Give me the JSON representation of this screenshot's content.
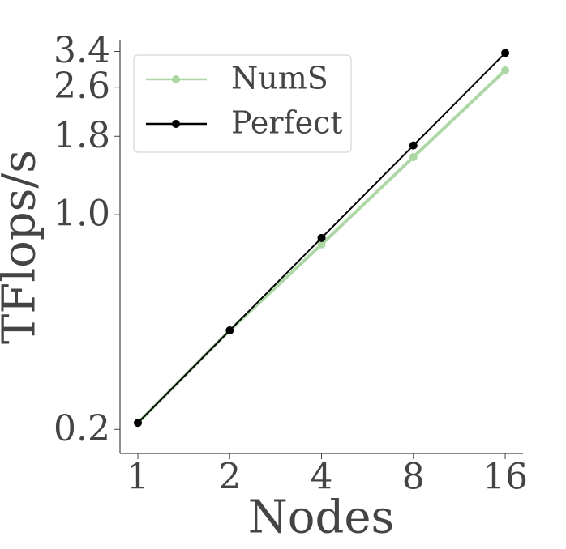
{
  "chart_data": {
    "type": "line",
    "x_label": "Nodes",
    "y_label": "TFlops/s",
    "x": [
      1,
      2,
      4,
      8,
      16
    ],
    "series": [
      {
        "name": "NumS",
        "color": "#add8a6",
        "values": [
          0.21,
          0.42,
          0.8,
          1.54,
          2.95
        ]
      },
      {
        "name": "Perfect",
        "color": "#000000",
        "values": [
          0.21,
          0.42,
          0.84,
          1.68,
          3.36
        ]
      }
    ],
    "x_scale": "log2",
    "y_scale": "log",
    "xlim": [
      0.874,
      18.3
    ],
    "xticks": [
      1,
      2,
      4,
      8,
      16
    ],
    "ylim": [
      0.167,
      3.69
    ],
    "yticks": [
      {
        "value": 0.2,
        "label": "0.2"
      },
      {
        "value": 1.0,
        "label": "1.0"
      },
      1.8,
      2.6,
      3.4
    ],
    "legend": "upper left",
    "grid": false
  }
}
